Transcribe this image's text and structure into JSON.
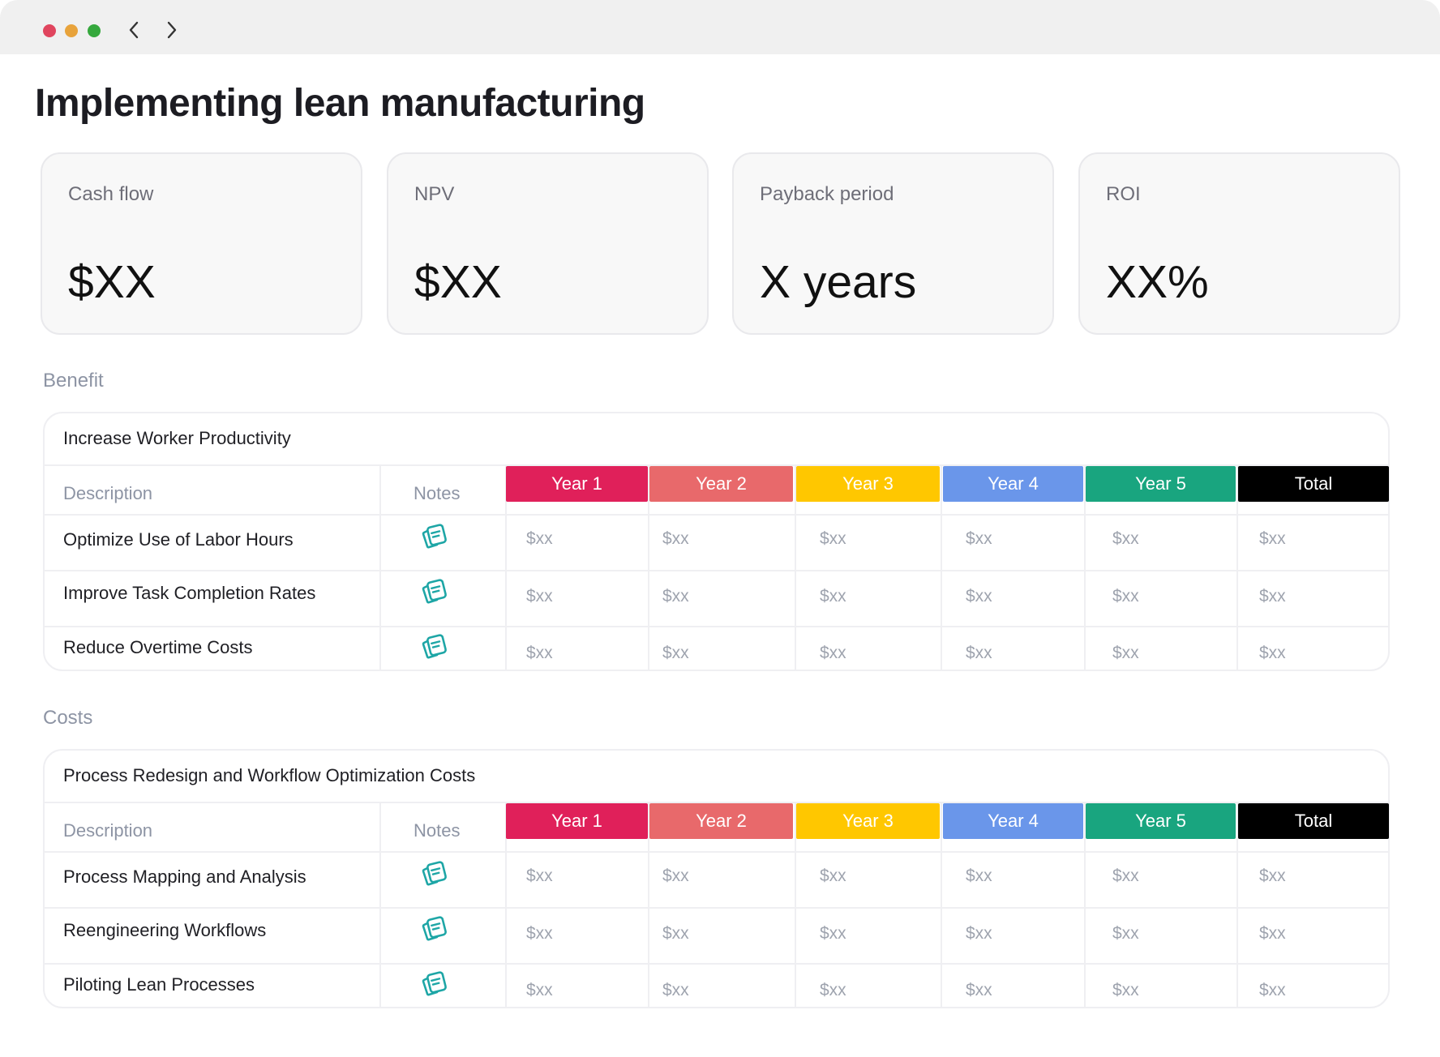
{
  "window": {
    "controls": [
      "close",
      "minimize",
      "maximize"
    ],
    "nav": {
      "back_icon": "chevron-left-icon",
      "forward_icon": "chevron-right-icon"
    }
  },
  "page": {
    "title": "Implementing lean manufacturing"
  },
  "kpis": [
    {
      "label": "Cash flow",
      "value": "$XX"
    },
    {
      "label": "NPV",
      "value": "$XX"
    },
    {
      "label": "Payback period",
      "value": "X years"
    },
    {
      "label": "ROI",
      "value": "XX%"
    }
  ],
  "colors": {
    "close": "#e0455e",
    "minimize": "#e8a33b",
    "maximize": "#35a83d",
    "year1": "#e0205a",
    "year2": "#e8696b",
    "year3": "#ffc700",
    "year4": "#6a96ea",
    "year5": "#19a57f",
    "total": "#000000",
    "notes_icon": "#1ea6a6"
  },
  "columns": {
    "description": "Description",
    "notes": "Notes",
    "periods": [
      "Year 1",
      "Year 2",
      "Year 3",
      "Year 4",
      "Year 5",
      "Total"
    ]
  },
  "benefit": {
    "section_label": "Benefit",
    "group_title": "Increase Worker Productivity",
    "rows": [
      {
        "description": "Optimize Use of Labor Hours",
        "values": [
          "$xx",
          "$xx",
          "$xx",
          "$xx",
          "$xx",
          "$xx"
        ]
      },
      {
        "description": "Improve Task Completion Rates",
        "values": [
          "$xx",
          "$xx",
          "$xx",
          "$xx",
          "$xx",
          "$xx"
        ]
      },
      {
        "description": "Reduce Overtime Costs",
        "values": [
          "$xx",
          "$xx",
          "$xx",
          "$xx",
          "$xx",
          "$xx"
        ]
      }
    ]
  },
  "costs": {
    "section_label": "Costs",
    "group_title": "Process Redesign and Workflow Optimization Costs",
    "rows": [
      {
        "description": "Process Mapping and Analysis",
        "values": [
          "$xx",
          "$xx",
          "$xx",
          "$xx",
          "$xx",
          "$xx"
        ]
      },
      {
        "description": "Reengineering Workflows",
        "values": [
          "$xx",
          "$xx",
          "$xx",
          "$xx",
          "$xx",
          "$xx"
        ]
      },
      {
        "description": "Piloting Lean Processes",
        "values": [
          "$xx",
          "$xx",
          "$xx",
          "$xx",
          "$xx",
          "$xx"
        ]
      }
    ]
  }
}
